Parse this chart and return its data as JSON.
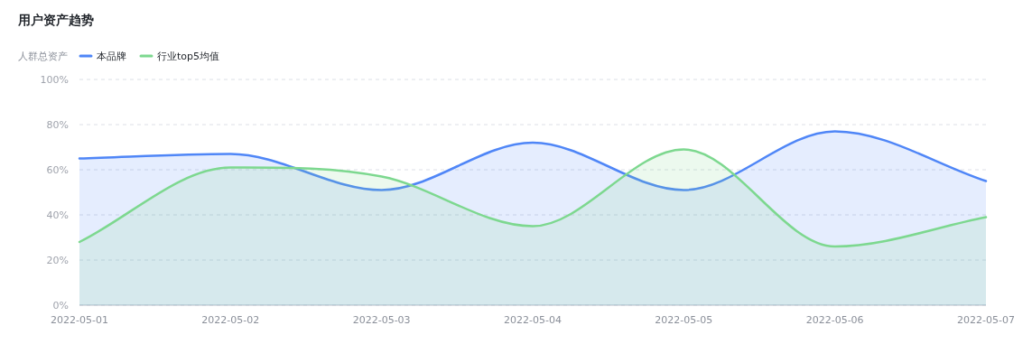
{
  "chart_data": {
    "type": "area",
    "title": "用户资产趋势",
    "legend_title": "人群总资产",
    "categories": [
      "2022-05-01",
      "2022-05-02",
      "2022-05-03",
      "2022-05-04",
      "2022-05-05",
      "2022-05-06",
      "2022-05-07"
    ],
    "series": [
      {
        "name": "本品牌",
        "color": "#4f86f7",
        "values": [
          65,
          67,
          51,
          72,
          51,
          77,
          55
        ]
      },
      {
        "name": "行业top5均值",
        "color": "#7dd88f",
        "values": [
          28,
          61,
          57,
          35,
          69,
          26,
          39
        ]
      }
    ],
    "ylim": [
      0,
      100
    ],
    "yticks": [
      {
        "value": 0,
        "label": "0%"
      },
      {
        "value": 20,
        "label": "20%"
      },
      {
        "value": 40,
        "label": "40%"
      },
      {
        "value": 60,
        "label": "60%"
      },
      {
        "value": 80,
        "label": "80%"
      },
      {
        "value": 100,
        "label": "100%"
      }
    ],
    "grid": "y",
    "legend": "top left",
    "marker": "none",
    "line_style": "solid"
  }
}
